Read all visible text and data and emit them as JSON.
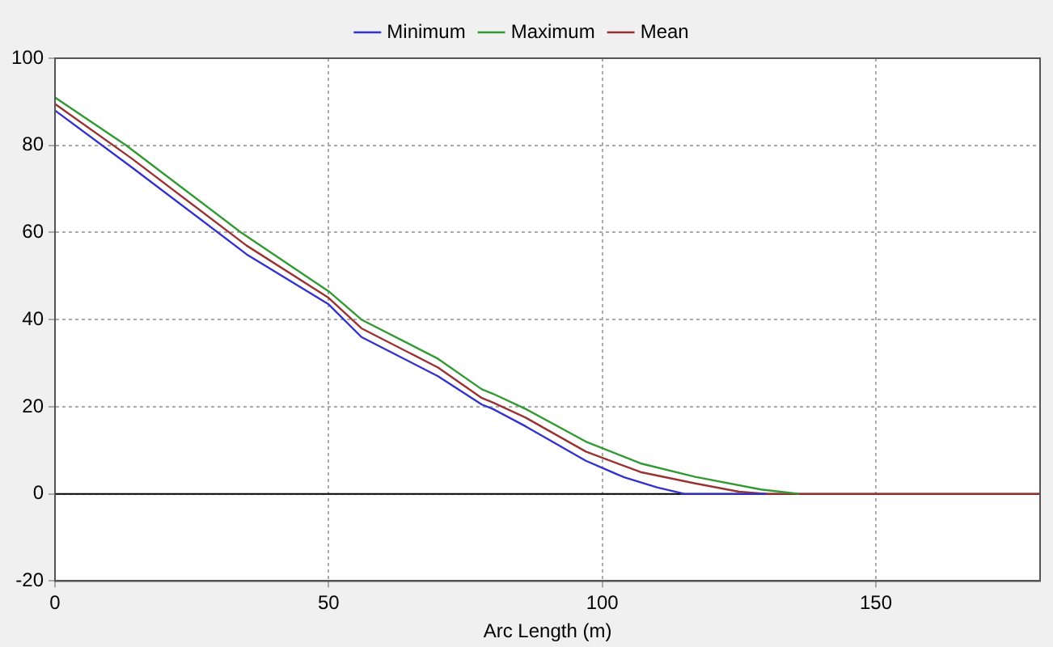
{
  "chart_data": {
    "type": "line",
    "xlabel": "Arc Length (m)",
    "xlim": [
      0,
      180
    ],
    "xticks": [
      0,
      50,
      100,
      150
    ],
    "ylim": [
      -20,
      100
    ],
    "yticks": [
      -20,
      0,
      20,
      40,
      60,
      80,
      100
    ],
    "grid": true,
    "legend": "top",
    "marker": "none",
    "line_style": "solid",
    "ref_lines": [
      {
        "axis": "y",
        "value": 0,
        "color": "#000000"
      }
    ],
    "series": [
      {
        "name": "Minimum",
        "color": "#3333cc",
        "x": [
          0,
          14,
          35,
          50,
          56,
          70,
          78,
          80,
          86,
          97,
          104,
          110,
          115,
          130
        ],
        "values": [
          88,
          75,
          55,
          43.5,
          36,
          27,
          20.5,
          19.5,
          15.5,
          7.6,
          3.8,
          1.5,
          0,
          0
        ]
      },
      {
        "name": "Maximum",
        "color": "#339933",
        "x": [
          0,
          13,
          34,
          50,
          56,
          70,
          78,
          80,
          86,
          97,
          107,
          117,
          129,
          136
        ],
        "values": [
          91,
          80,
          60,
          46.5,
          40,
          31,
          24,
          23,
          19.5,
          12,
          7,
          3.9,
          1,
          0
        ]
      },
      {
        "name": "Mean",
        "color": "#993333",
        "x": [
          0,
          14,
          35,
          50,
          56,
          70,
          78,
          80,
          86,
          97,
          107,
          117,
          125,
          130,
          180
        ],
        "values": [
          89.5,
          77,
          57,
          45,
          38,
          29,
          22,
          21,
          17.5,
          9.7,
          5,
          2.4,
          0.5,
          0,
          0
        ]
      }
    ]
  }
}
